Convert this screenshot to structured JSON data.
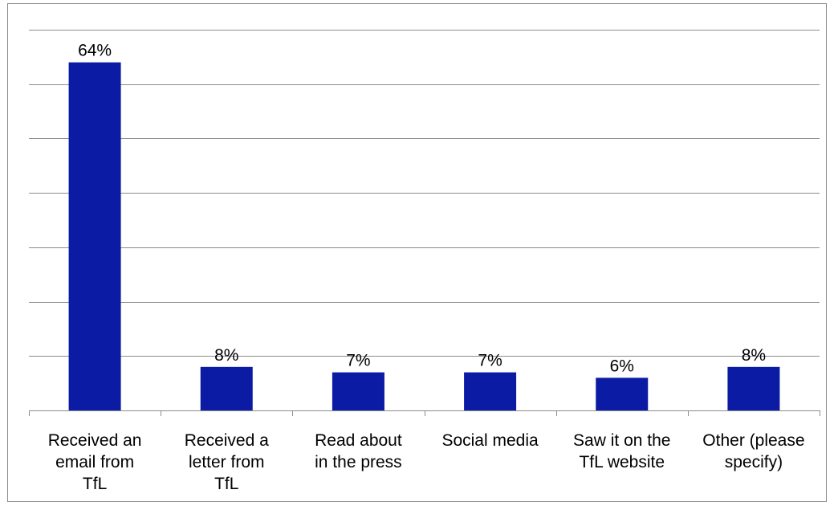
{
  "chart_data": {
    "type": "bar",
    "categories": [
      [
        "Received an",
        "email from",
        "TfL"
      ],
      [
        "Received a",
        "letter from",
        "TfL"
      ],
      [
        "Read about",
        "in the press"
      ],
      [
        "Social media"
      ],
      [
        "Saw it on the",
        "TfL website"
      ],
      [
        "Other (please",
        "specify)"
      ]
    ],
    "values": [
      64,
      8,
      7,
      7,
      6,
      8
    ],
    "data_labels": [
      "64%",
      "8%",
      "7%",
      "7%",
      "6%",
      "8%"
    ],
    "ylim": [
      0,
      70
    ],
    "y_gridline_step": 10,
    "grid": true,
    "legend": "none",
    "bar_color": "#0b1ba4"
  }
}
